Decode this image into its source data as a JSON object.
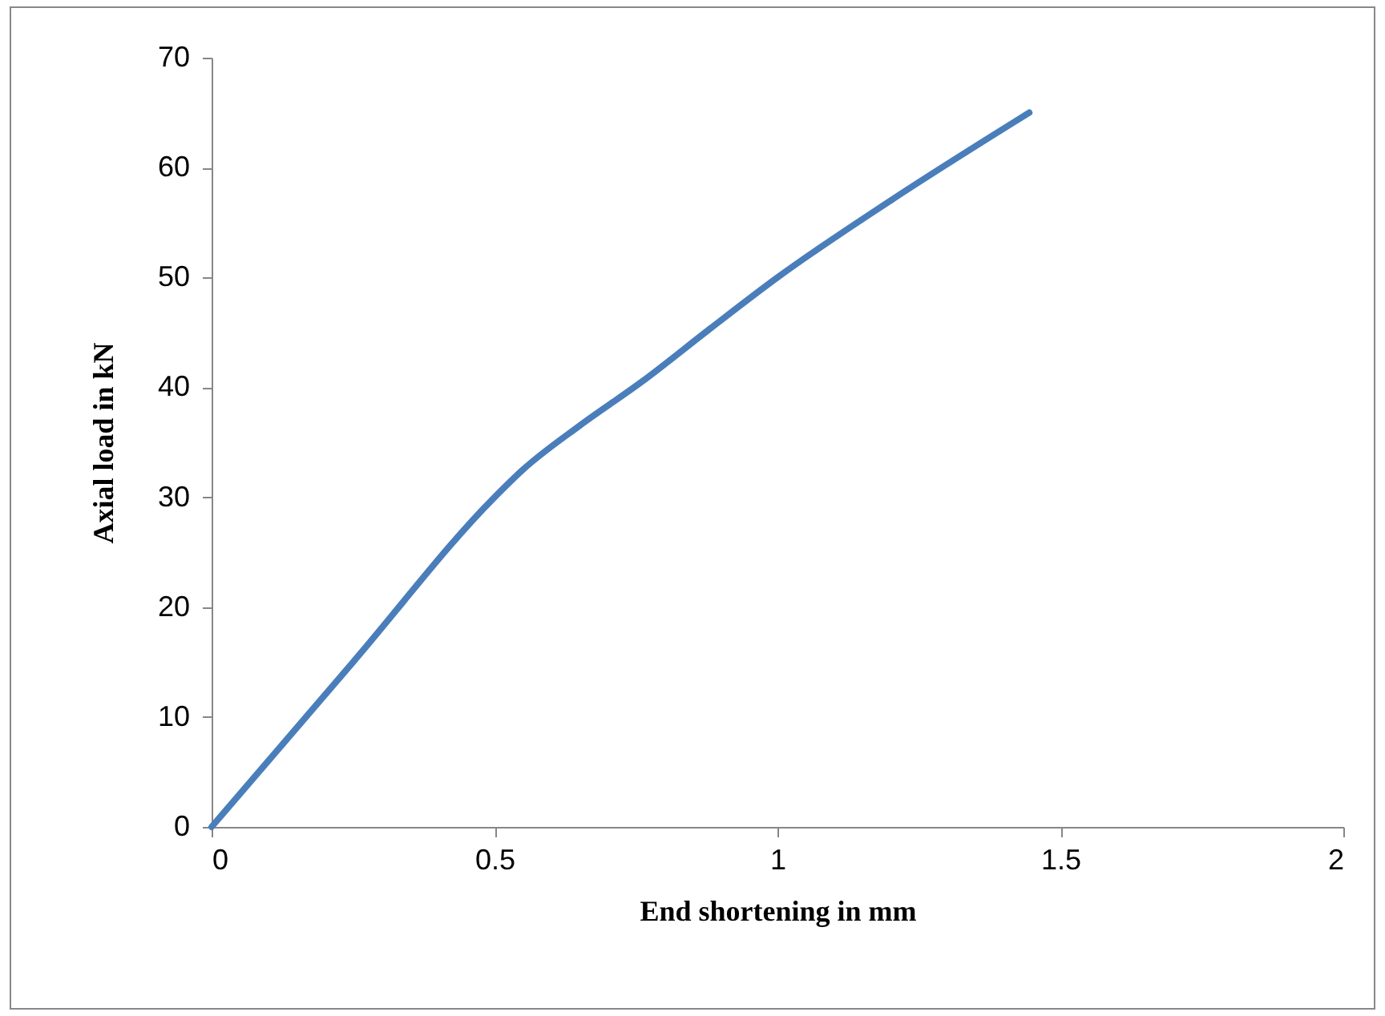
{
  "chart_data": {
    "type": "line",
    "xlabel": "End shortening in mm",
    "ylabel": "Axial load in kN",
    "x": [
      0,
      0.25,
      0.5,
      0.55,
      0.65,
      0.76,
      0.88,
      1.0,
      1.2,
      1.445
    ],
    "series": [
      {
        "color": "#4a7ebb",
        "values": [
          0,
          15,
          30,
          32.5,
          36.5,
          40.5,
          45.3,
          50,
          57,
          65
        ]
      }
    ],
    "xlim": [
      0,
      2
    ],
    "xticks": [
      0,
      0.5,
      1,
      1.5,
      2
    ],
    "ylim": [
      0,
      70
    ],
    "yticks": [
      0,
      10,
      20,
      30,
      40,
      50,
      60,
      70
    ],
    "grid": false,
    "legend": false,
    "marker": "none",
    "line_style": "solid"
  }
}
